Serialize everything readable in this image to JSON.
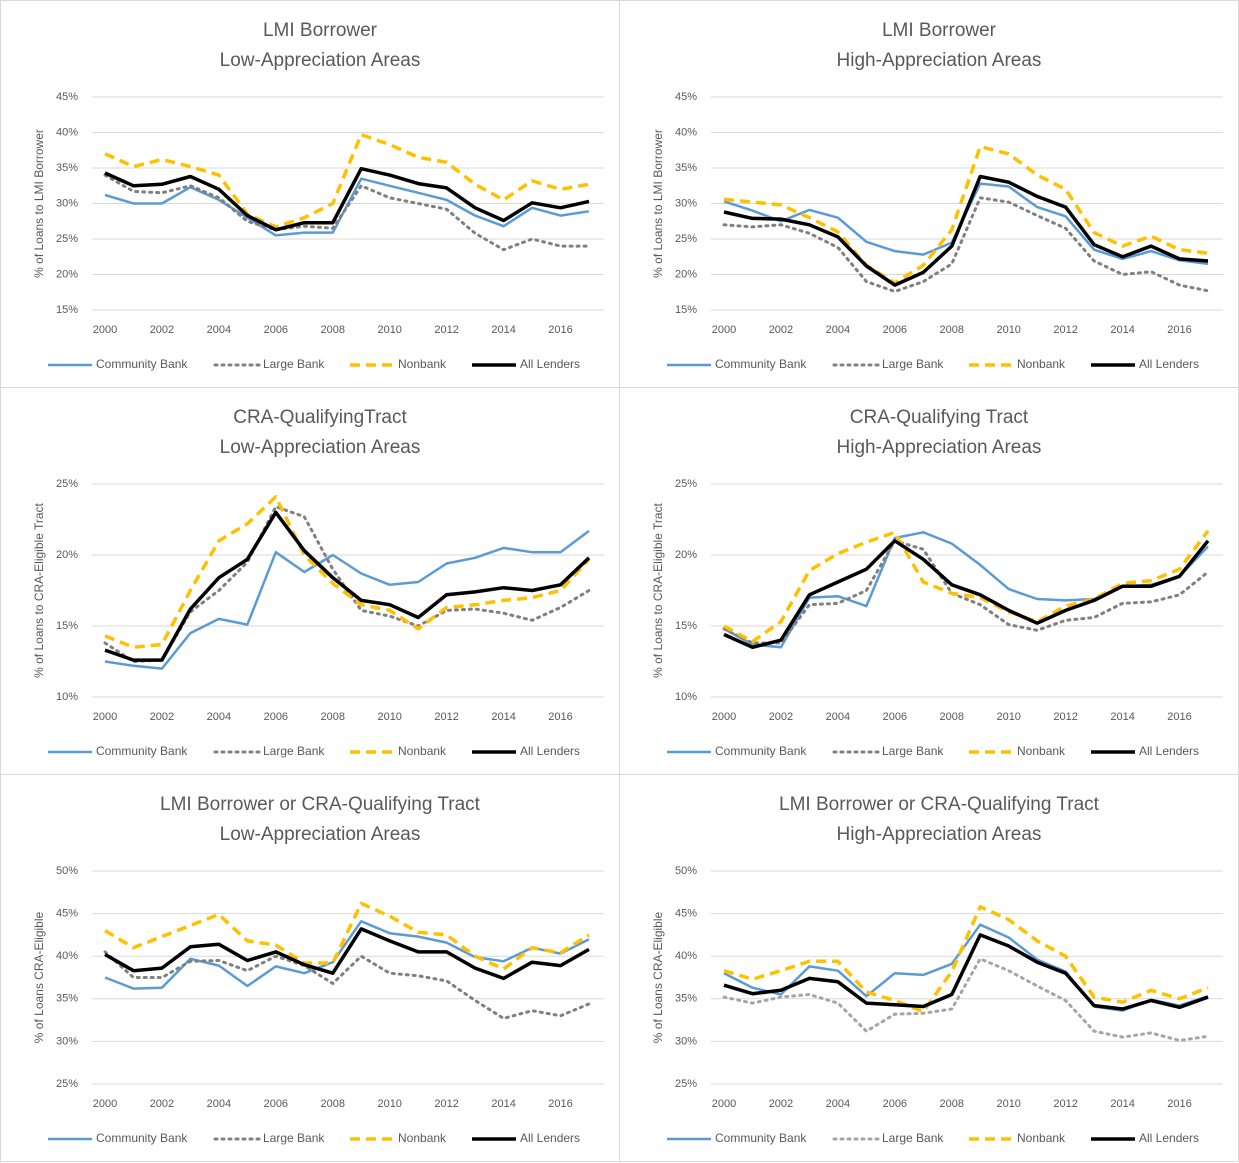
{
  "chart_data": [
    {
      "type": "line",
      "title": "LMI Borrower",
      "subtitle": "Low-Appreciation Areas",
      "y_label": "% of Loans to LMI Borrower",
      "x": [
        2000,
        2001,
        2002,
        2003,
        2004,
        2005,
        2006,
        2007,
        2008,
        2009,
        2010,
        2011,
        2012,
        2013,
        2014,
        2015,
        2016,
        2017
      ],
      "xlim": [
        2000,
        2017
      ],
      "xticks": [
        2000,
        2002,
        2004,
        2006,
        2008,
        2010,
        2012,
        2014,
        2016
      ],
      "ylim": [
        15,
        45
      ],
      "yticks": [
        {
          "value": 15,
          "label": "15%"
        },
        {
          "value": 20,
          "label": "20%"
        },
        {
          "value": 25,
          "label": "25%"
        },
        {
          "value": 30,
          "label": "30%"
        },
        {
          "value": 35,
          "label": "35%"
        },
        {
          "value": 40,
          "label": "40%"
        },
        {
          "value": 45,
          "label": "45%"
        }
      ],
      "grid": true,
      "legend": "bottom",
      "series": [
        {
          "name": "Community Bank",
          "color": "#5b9bd5",
          "style": "solid",
          "values": [
            31.2,
            30,
            30,
            32.3,
            30.5,
            28,
            25.5,
            25.9,
            25.9,
            33.5,
            32.5,
            31.5,
            30.5,
            28.3,
            26.8,
            29.4,
            28.3,
            28.9
          ]
        },
        {
          "name": "Large Bank",
          "color": "#808080",
          "style": "dotted",
          "values": [
            34,
            31.7,
            31.5,
            32.5,
            30.8,
            27.5,
            26.3,
            26.8,
            26.5,
            32.5,
            30.8,
            30,
            29.2,
            25.8,
            23.5,
            25,
            24,
            24
          ]
        },
        {
          "name": "Nonbank",
          "color": "#ffc000",
          "style": "dashed",
          "values": [
            37,
            35.2,
            36.2,
            35.2,
            34,
            28.5,
            26.7,
            28,
            30,
            39.7,
            38.3,
            36.5,
            35.8,
            32.7,
            30.5,
            33.2,
            32,
            32.7
          ]
        },
        {
          "name": "All Lenders",
          "color": "#000000",
          "style": "bold",
          "values": [
            34.3,
            32.5,
            32.7,
            33.8,
            32,
            28.3,
            26.3,
            27.3,
            27.3,
            34.9,
            34,
            32.8,
            32.2,
            29.4,
            27.6,
            30.1,
            29.4,
            30.3
          ]
        }
      ]
    },
    {
      "type": "line",
      "title": "LMI Borrower",
      "subtitle": "High-Appreciation Areas",
      "y_label": "% of Loans to LMI Borrower",
      "x": [
        2000,
        2001,
        2002,
        2003,
        2004,
        2005,
        2006,
        2007,
        2008,
        2009,
        2010,
        2011,
        2012,
        2013,
        2014,
        2015,
        2016,
        2017
      ],
      "xlim": [
        2000,
        2017
      ],
      "xticks": [
        2000,
        2002,
        2004,
        2006,
        2008,
        2010,
        2012,
        2014,
        2016
      ],
      "ylim": [
        15,
        45
      ],
      "yticks": [
        {
          "value": 15,
          "label": "15%"
        },
        {
          "value": 20,
          "label": "20%"
        },
        {
          "value": 25,
          "label": "25%"
        },
        {
          "value": 30,
          "label": "30%"
        },
        {
          "value": 35,
          "label": "35%"
        },
        {
          "value": 40,
          "label": "40%"
        },
        {
          "value": 45,
          "label": "45%"
        }
      ],
      "grid": true,
      "legend": "bottom",
      "series": [
        {
          "name": "Community Bank",
          "color": "#5b9bd5",
          "style": "solid",
          "values": [
            30.3,
            29,
            27.5,
            29.1,
            28,
            24.6,
            23.3,
            22.8,
            24.5,
            32.8,
            32.4,
            29.5,
            28.2,
            23.5,
            22.2,
            23.3,
            22,
            21.5
          ]
        },
        {
          "name": "Large Bank",
          "color": "#808080",
          "style": "dotted",
          "values": [
            27,
            26.7,
            27,
            25.8,
            23.8,
            19,
            17.6,
            19,
            21.5,
            30.8,
            30.2,
            28.3,
            26.5,
            21.9,
            20,
            20.4,
            18.5,
            17.7
          ]
        },
        {
          "name": "Nonbank",
          "color": "#ffc000",
          "style": "dashed",
          "values": [
            30.6,
            30.2,
            29.8,
            28,
            26,
            21.3,
            18.8,
            21.3,
            26.3,
            38,
            37,
            34,
            32,
            25.9,
            24,
            25.4,
            23.5,
            23
          ]
        },
        {
          "name": "All Lenders",
          "color": "#000000",
          "style": "bold",
          "values": [
            28.8,
            27.9,
            27.8,
            27,
            25.3,
            21.2,
            18.5,
            20.3,
            24,
            33.8,
            33,
            31,
            29.5,
            24.2,
            22.5,
            24,
            22.2,
            21.9
          ]
        }
      ]
    },
    {
      "type": "line",
      "title": "CRA-QualifyingTract",
      "subtitle": "Low-Appreciation Areas",
      "y_label": "% of Loans to CRA-Eligible Tract",
      "x": [
        2000,
        2001,
        2002,
        2003,
        2004,
        2005,
        2006,
        2007,
        2008,
        2009,
        2010,
        2011,
        2012,
        2013,
        2014,
        2015,
        2016,
        2017
      ],
      "xlim": [
        2000,
        2017
      ],
      "xticks": [
        2000,
        2002,
        2004,
        2006,
        2008,
        2010,
        2012,
        2014,
        2016
      ],
      "ylim": [
        10,
        25
      ],
      "yticks": [
        {
          "value": 10,
          "label": "10%"
        },
        {
          "value": 15,
          "label": "15%"
        },
        {
          "value": 20,
          "label": "20%"
        },
        {
          "value": 25,
          "label": "25%"
        }
      ],
      "grid": true,
      "legend": "bottom",
      "series": [
        {
          "name": "Community Bank",
          "color": "#5b9bd5",
          "style": "solid",
          "values": [
            12.5,
            12.2,
            12,
            14.5,
            15.5,
            15.1,
            20.2,
            18.8,
            20,
            18.7,
            17.9,
            18.1,
            19.4,
            19.8,
            20.5,
            20.2,
            20.2,
            21.7
          ]
        },
        {
          "name": "Large Bank",
          "color": "#808080",
          "style": "dotted",
          "values": [
            13.8,
            12.5,
            12.6,
            16,
            17.5,
            19.5,
            23.4,
            22.7,
            19,
            16.1,
            15.7,
            15,
            16.1,
            16.2,
            15.9,
            15.4,
            16.3,
            17.5
          ]
        },
        {
          "name": "Nonbank",
          "color": "#ffc000",
          "style": "dashed",
          "values": [
            14.3,
            13.5,
            13.7,
            17.5,
            21,
            22.2,
            24.1,
            20,
            18,
            16.5,
            16.1,
            14.8,
            16.3,
            16.5,
            16.8,
            17,
            17.5,
            19.7
          ]
        },
        {
          "name": "All Lenders",
          "color": "#000000",
          "style": "bold",
          "values": [
            13.3,
            12.6,
            12.6,
            16.2,
            18.4,
            19.7,
            23,
            20.3,
            18.4,
            16.8,
            16.5,
            15.6,
            17.2,
            17.4,
            17.7,
            17.5,
            17.9,
            19.8
          ]
        }
      ]
    },
    {
      "type": "line",
      "title": "CRA-Qualifying Tract",
      "subtitle": "High-Appreciation Areas",
      "y_label": "% of Loans to CRA-Eligible Tract",
      "x": [
        2000,
        2001,
        2002,
        2003,
        2004,
        2005,
        2006,
        2007,
        2008,
        2009,
        2010,
        2011,
        2012,
        2013,
        2014,
        2015,
        2016,
        2017
      ],
      "xlim": [
        2000,
        2017
      ],
      "xticks": [
        2000,
        2002,
        2004,
        2006,
        2008,
        2010,
        2012,
        2014,
        2016
      ],
      "ylim": [
        10,
        25
      ],
      "yticks": [
        {
          "value": 10,
          "label": "10%"
        },
        {
          "value": 15,
          "label": "15%"
        },
        {
          "value": 20,
          "label": "20%"
        },
        {
          "value": 25,
          "label": "25%"
        }
      ],
      "grid": true,
      "legend": "bottom",
      "series": [
        {
          "name": "Community Bank",
          "color": "#5b9bd5",
          "style": "solid",
          "values": [
            14.8,
            13.7,
            13.5,
            17,
            17.1,
            16.4,
            21.2,
            21.6,
            20.8,
            19.3,
            17.6,
            16.9,
            16.8,
            16.9,
            17.8,
            17.9,
            18.5,
            20.6
          ]
        },
        {
          "name": "Large Bank",
          "color": "#808080",
          "style": "dotted",
          "values": [
            14.8,
            13.8,
            13.8,
            16.5,
            16.6,
            17.5,
            21,
            20.4,
            17.3,
            16.5,
            15.1,
            14.7,
            15.4,
            15.6,
            16.6,
            16.7,
            17.2,
            18.8
          ]
        },
        {
          "name": "Nonbank",
          "color": "#ffc000",
          "style": "dashed",
          "values": [
            15,
            13.9,
            15.3,
            18.9,
            20.1,
            20.9,
            21.6,
            18.1,
            17.3,
            17,
            16,
            15.3,
            16.4,
            16.9,
            18,
            18.2,
            19,
            21.7
          ]
        },
        {
          "name": "All Lenders",
          "color": "#000000",
          "style": "bold",
          "values": [
            14.4,
            13.5,
            14,
            17.2,
            18.1,
            19,
            21,
            19.7,
            17.9,
            17.2,
            16.1,
            15.2,
            16.1,
            16.8,
            17.8,
            17.8,
            18.5,
            21
          ]
        }
      ]
    },
    {
      "type": "line",
      "title": "LMI Borrower or CRA-Qualifying Tract",
      "subtitle": "Low-Appreciation Areas",
      "y_label": "% of Loans CRA-Eligible",
      "x": [
        2000,
        2001,
        2002,
        2003,
        2004,
        2005,
        2006,
        2007,
        2008,
        2009,
        2010,
        2011,
        2012,
        2013,
        2014,
        2015,
        2016,
        2017
      ],
      "xlim": [
        2000,
        2017
      ],
      "xticks": [
        2000,
        2002,
        2004,
        2006,
        2008,
        2010,
        2012,
        2014,
        2016
      ],
      "ylim": [
        25,
        50
      ],
      "yticks": [
        {
          "value": 25,
          "label": "25%"
        },
        {
          "value": 30,
          "label": "30%"
        },
        {
          "value": 35,
          "label": "35%"
        },
        {
          "value": 40,
          "label": "40%"
        },
        {
          "value": 45,
          "label": "45%"
        },
        {
          "value": 50,
          "label": "50%"
        }
      ],
      "grid": true,
      "legend": "bottom",
      "series": [
        {
          "name": "Community Bank",
          "color": "#5b9bd5",
          "style": "solid",
          "values": [
            37.5,
            36.2,
            36.3,
            39.7,
            38.9,
            36.5,
            38.8,
            38,
            39.3,
            44.1,
            42.7,
            42.3,
            41.6,
            39.9,
            39.4,
            41,
            40.3,
            42
          ]
        },
        {
          "name": "Large Bank",
          "color": "#808080",
          "style": "dotted",
          "values": [
            40.5,
            37.5,
            37.5,
            39.4,
            39.5,
            38.3,
            40,
            38.9,
            36.8,
            40,
            38,
            37.7,
            37.1,
            34.8,
            32.7,
            33.6,
            33,
            34.4
          ]
        },
        {
          "name": "Nonbank",
          "color": "#ffc000",
          "style": "dashed",
          "values": [
            43,
            41,
            42.3,
            43.6,
            44.9,
            41.8,
            41.3,
            39.2,
            39.2,
            46.2,
            44.7,
            42.8,
            42.5,
            40,
            38.5,
            41,
            40.4,
            42.5
          ]
        },
        {
          "name": "All Lenders",
          "color": "#000000",
          "style": "bold",
          "values": [
            40.2,
            38.3,
            38.6,
            41.1,
            41.4,
            39.5,
            40.5,
            39,
            38,
            43.2,
            41.8,
            40.5,
            40.5,
            38.6,
            37.4,
            39.3,
            38.9,
            40.8
          ]
        }
      ]
    },
    {
      "type": "line",
      "title": "LMI Borrower or CRA-Qualifying Tract",
      "subtitle": "High-Appreciation Areas",
      "y_label": "% of Loans CRA-Eligible",
      "x": [
        2000,
        2001,
        2002,
        2003,
        2004,
        2005,
        2006,
        2007,
        2008,
        2009,
        2010,
        2011,
        2012,
        2013,
        2014,
        2015,
        2016,
        2017
      ],
      "xlim": [
        2000,
        2017
      ],
      "xticks": [
        2000,
        2002,
        2004,
        2006,
        2008,
        2010,
        2012,
        2014,
        2016
      ],
      "ylim": [
        25,
        50
      ],
      "yticks": [
        {
          "value": 25,
          "label": "25%"
        },
        {
          "value": 30,
          "label": "30%"
        },
        {
          "value": 35,
          "label": "35%"
        },
        {
          "value": 40,
          "label": "40%"
        },
        {
          "value": 45,
          "label": "45%"
        },
        {
          "value": 50,
          "label": "50%"
        }
      ],
      "grid": true,
      "legend": "bottom",
      "series": [
        {
          "name": "Community Bank",
          "color": "#5b9bd5",
          "style": "solid",
          "values": [
            38,
            36.3,
            35.5,
            38.8,
            38.3,
            35.3,
            38,
            37.8,
            39.1,
            43.7,
            42.2,
            39.6,
            38.2,
            34.1,
            33.6,
            34.9,
            34.2,
            35.3
          ]
        },
        {
          "name": "Large Bank",
          "color": "#a5a5a5",
          "style": "dotted",
          "values": [
            35.2,
            34.5,
            35.2,
            35.5,
            34.5,
            31.2,
            33.2,
            33.3,
            33.8,
            39.7,
            38.3,
            36.5,
            34.8,
            31.2,
            30.5,
            31,
            30.1,
            30.6
          ]
        },
        {
          "name": "Nonbank",
          "color": "#ffc000",
          "style": "dashed",
          "values": [
            38.3,
            37.3,
            38.3,
            39.4,
            39.4,
            35.8,
            34.8,
            33.5,
            38.2,
            45.8,
            44.3,
            41.8,
            40,
            35.2,
            34.6,
            36,
            35,
            36.3
          ]
        },
        {
          "name": "All Lenders",
          "color": "#000000",
          "style": "bold",
          "values": [
            36.6,
            35.6,
            36,
            37.4,
            37,
            34.5,
            34.3,
            34.1,
            35.5,
            42.5,
            41.2,
            39.3,
            38,
            34.2,
            33.8,
            34.8,
            34,
            35.2
          ]
        }
      ]
    }
  ]
}
